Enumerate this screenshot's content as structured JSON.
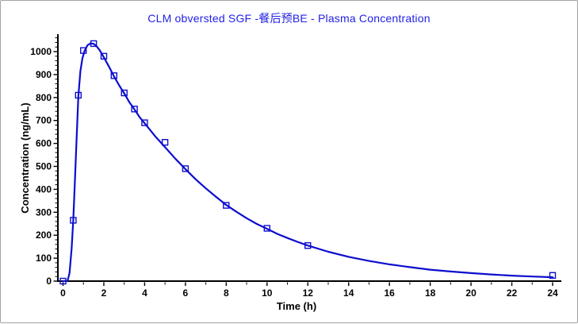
{
  "window": {
    "background": "#ffffff",
    "border_color": "#a3a3a3"
  },
  "chart_data": {
    "type": "line",
    "title": "CLM obversted SGF -餐后预BE - Plasma Concentration",
    "title_color": "#2222e6",
    "xlabel": "Time (h)",
    "ylabel": "Concentration (ng/mL)",
    "xlim": [
      0,
      24
    ],
    "ylim": [
      0,
      1050
    ],
    "x_major_ticks": [
      0,
      2,
      4,
      6,
      8,
      10,
      12,
      14,
      16,
      18,
      20,
      22,
      24
    ],
    "x_minor_ticks": [
      1,
      3,
      5,
      7,
      9,
      11,
      13,
      15,
      17,
      19,
      21,
      23
    ],
    "y_major_ticks": [
      0,
      100,
      200,
      300,
      400,
      500,
      600,
      700,
      800,
      900,
      1000
    ],
    "y_minor_step": 20,
    "grid": false,
    "legend": null,
    "axis_color": "#000000",
    "series": [
      {
        "name": "observed-points",
        "style": "markers",
        "marker": "open-square",
        "color": "#0d0dce",
        "x": [
          0,
          0.5,
          0.75,
          1,
          1.5,
          2,
          2.5,
          3,
          3.5,
          4,
          5,
          6,
          8,
          10,
          12,
          24
        ],
        "y": [
          0,
          265,
          810,
          1005,
          1035,
          980,
          895,
          820,
          750,
          690,
          605,
          490,
          330,
          230,
          155,
          25
        ]
      },
      {
        "name": "fitted-curve",
        "style": "line",
        "color": "#0d0dce",
        "x": [
          0,
          0.22,
          0.32,
          0.42,
          0.5,
          0.58,
          0.66,
          0.75,
          0.85,
          0.95,
          1.05,
          1.2,
          1.35,
          1.5,
          1.65,
          1.8,
          2,
          2.25,
          2.5,
          2.75,
          3,
          3.25,
          3.5,
          3.75,
          4,
          4.5,
          5,
          5.5,
          6,
          6.5,
          7,
          7.5,
          8,
          8.5,
          9,
          9.5,
          10,
          10.5,
          11,
          11.5,
          12,
          13,
          14,
          15,
          16,
          17,
          18,
          19,
          20,
          21,
          22,
          23,
          24
        ],
        "y": [
          0,
          1,
          35,
          140,
          265,
          430,
          610,
          805,
          915,
          970,
          1002,
          1028,
          1036,
          1034,
          1023,
          1006,
          975,
          935,
          892,
          853,
          818,
          780,
          748,
          715,
          688,
          633,
          584,
          534,
          488,
          444,
          404,
          367,
          332,
          302,
          274,
          249,
          228,
          206,
          188,
          171,
          155,
          128,
          106,
          88,
          73,
          61,
          50,
          42,
          35,
          29,
          24,
          20,
          17
        ]
      }
    ]
  }
}
